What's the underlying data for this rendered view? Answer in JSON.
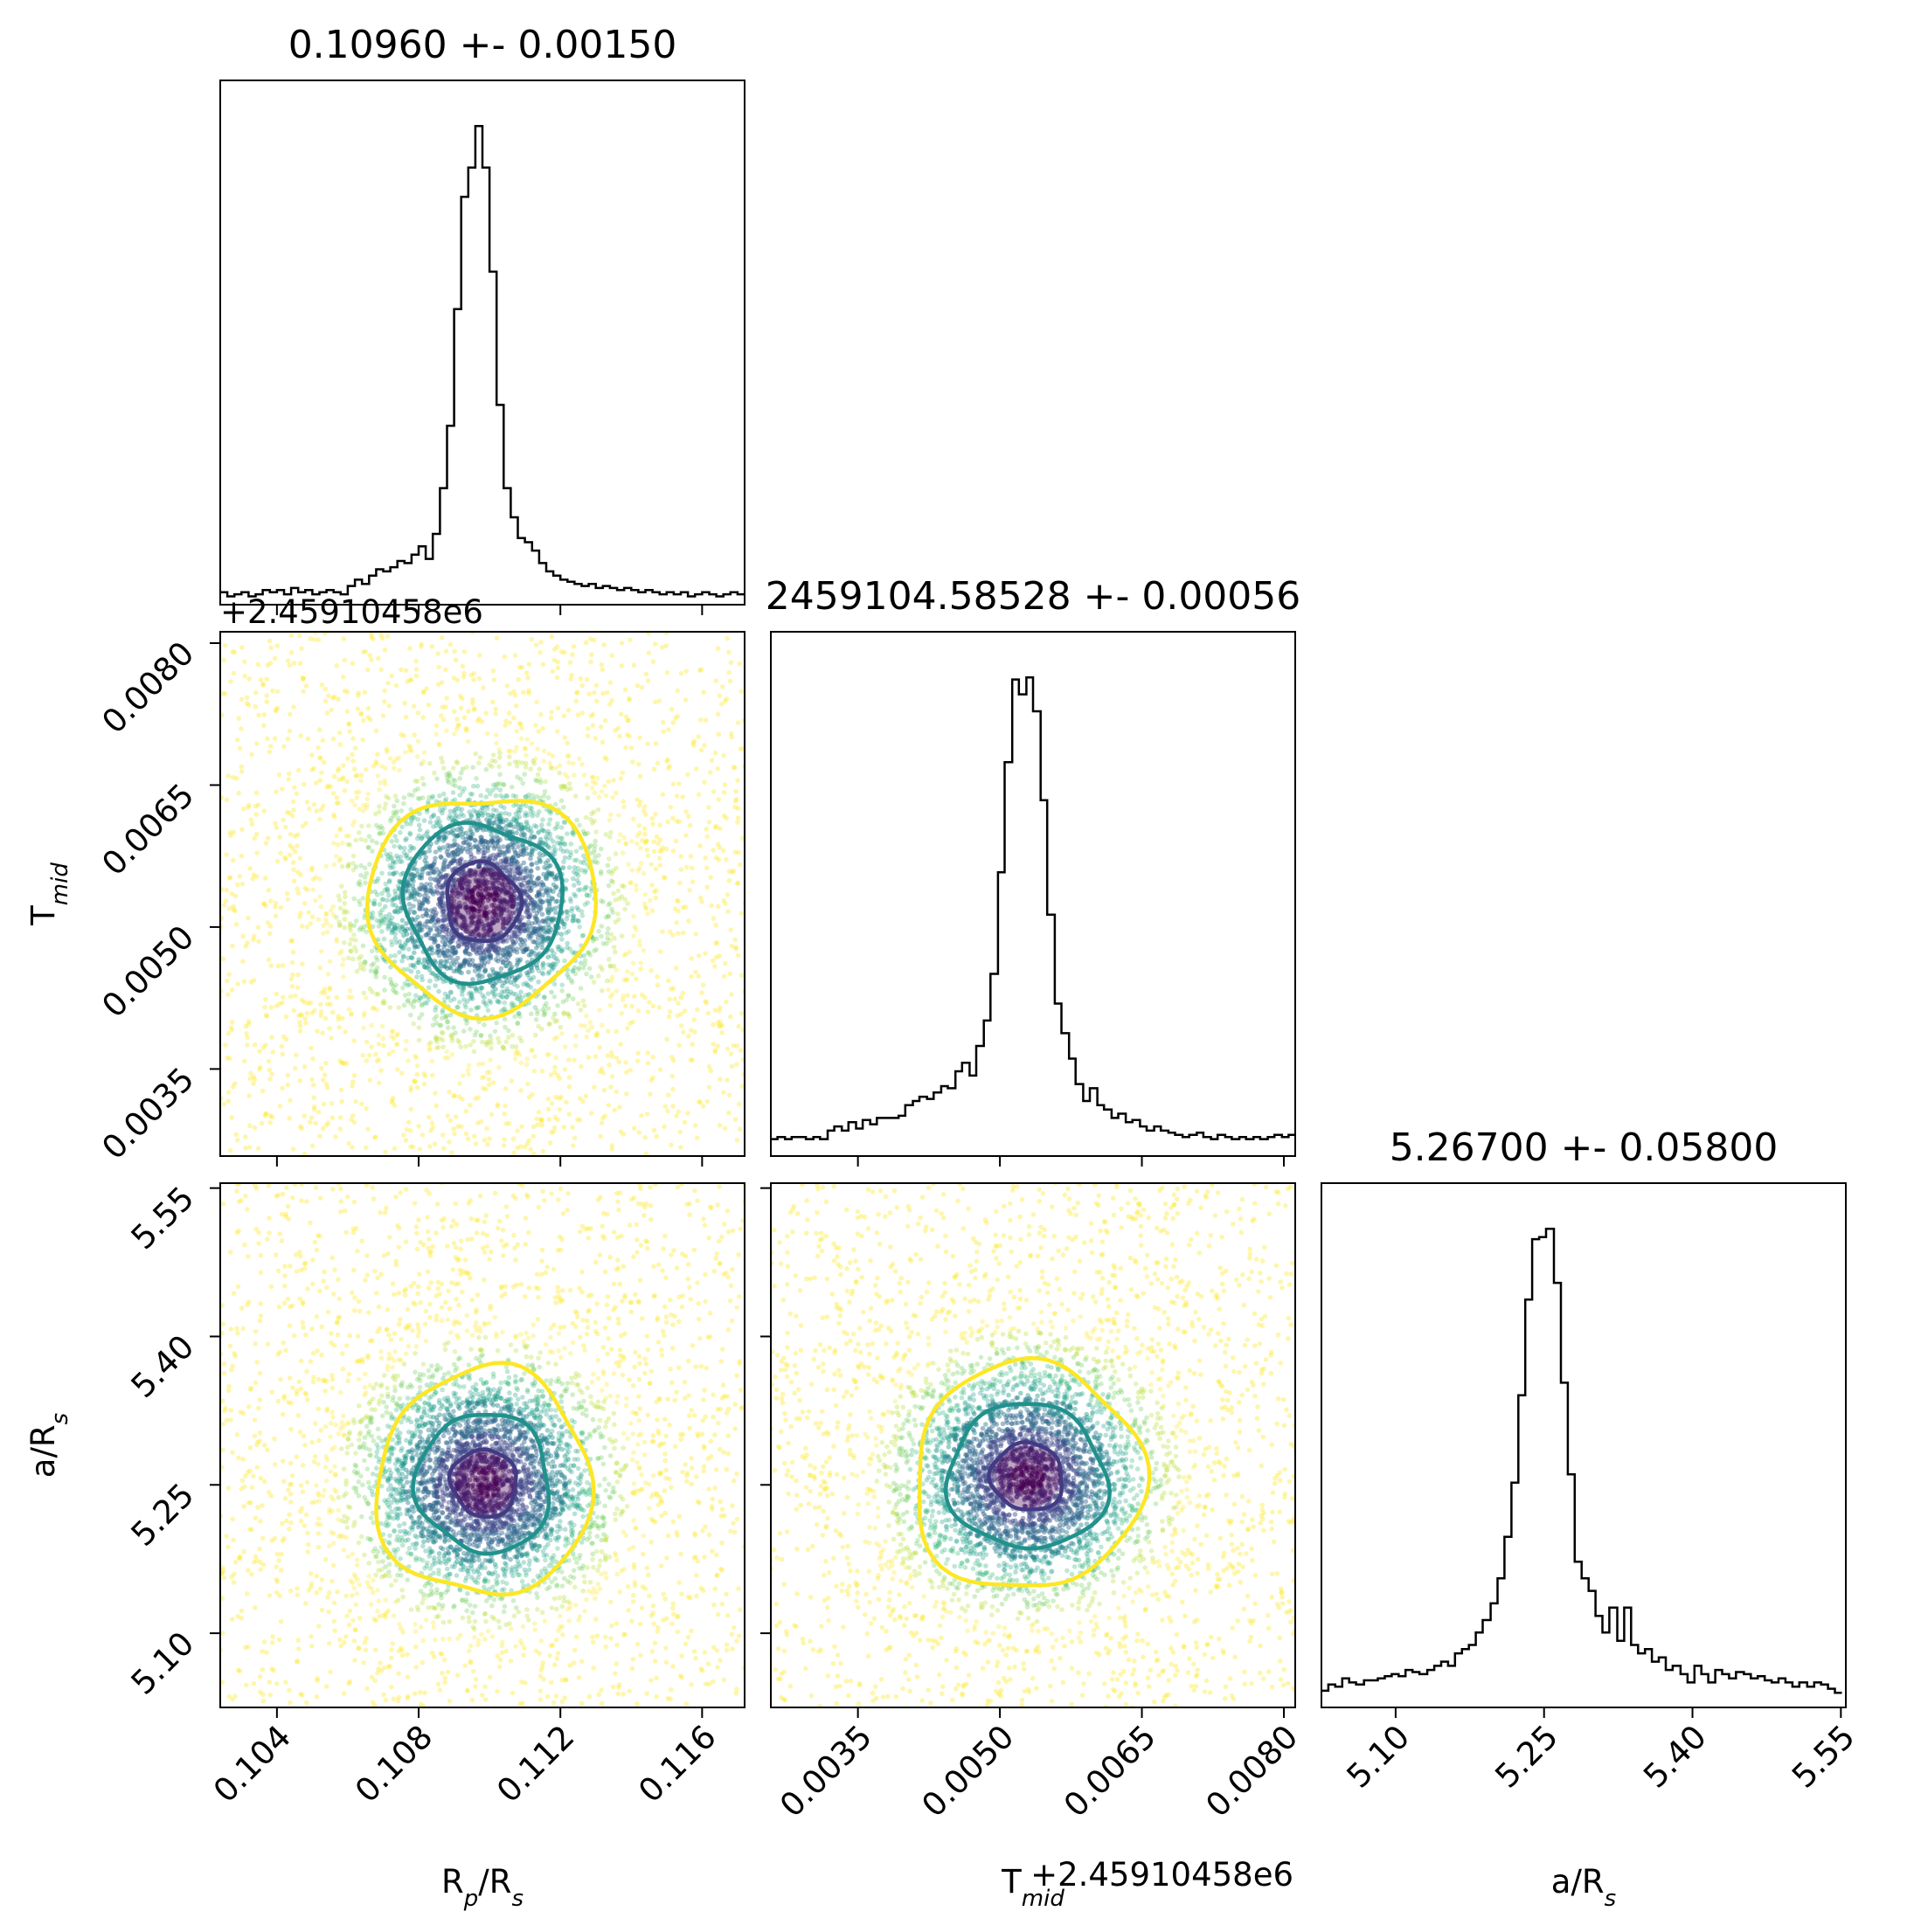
{
  "chart_data": {
    "type": "corner",
    "params": [
      "R_p/R_s",
      "T_mid",
      "a/R_s"
    ],
    "panels": [
      {
        "kind": "hist",
        "row": 0,
        "col": 0,
        "title": "0.10960 +- 0.00150",
        "xlim": [
          0.1024,
          0.1172
        ],
        "x_tick_labels_shown": false,
        "bins": [
          0.1024,
          0.1026,
          0.1028,
          0.103,
          0.1032,
          0.1034,
          0.1036,
          0.1038,
          0.104,
          0.1042,
          0.1044,
          0.1046,
          0.1048,
          0.105,
          0.1052,
          0.1054,
          0.1056,
          0.1058,
          0.106,
          0.1062,
          0.1064,
          0.1066,
          0.1068,
          0.107,
          0.1072,
          0.1074,
          0.1076,
          0.1078,
          0.108,
          0.1082,
          0.1084,
          0.1086,
          0.1088,
          0.109,
          0.1092,
          0.1094,
          0.1096,
          0.1098,
          0.11,
          0.1102,
          0.1104,
          0.1106,
          0.1108,
          0.111,
          0.1112,
          0.1114,
          0.1116,
          0.1118,
          0.112,
          0.1122,
          0.1124,
          0.1126,
          0.1128,
          0.113,
          0.1132,
          0.1134,
          0.1136,
          0.1138,
          0.114,
          0.1142,
          0.1144,
          0.1146,
          0.1148,
          0.115,
          0.1152,
          0.1154,
          0.1156,
          0.1158,
          0.116,
          0.1162,
          0.1164,
          0.1166,
          0.1168,
          0.117,
          0.1172
        ],
        "counts": [
          6,
          4,
          5,
          6,
          4,
          5,
          7,
          6,
          7,
          5,
          8,
          6,
          7,
          5,
          6,
          7,
          6,
          5,
          9,
          12,
          10,
          14,
          17,
          16,
          18,
          21,
          20,
          24,
          28,
          22,
          34,
          56,
          86,
          142,
          196,
          210,
          230,
          210,
          160,
          96,
          56,
          42,
          32,
          30,
          26,
          20,
          16,
          14,
          12,
          11,
          10,
          9,
          10,
          8,
          9,
          8,
          7,
          8,
          7,
          6,
          7,
          6,
          5,
          6,
          5,
          6,
          4,
          5,
          6,
          5,
          4,
          5,
          6,
          5
        ]
      },
      {
        "kind": "scatter",
        "row": 1,
        "col": 0,
        "xlim": [
          0.1024,
          0.1172
        ],
        "ylim": [
          0.00258,
          0.00812
        ],
        "center": [
          0.1098,
          0.00526
        ],
        "sigma": [
          0.0016,
          0.00062
        ],
        "contours": [
          {
            "level": 0.39,
            "rx": 0.00104,
            "ry": 0.00042,
            "color": "#443a83"
          },
          {
            "level": 0.86,
            "rx": 0.00218,
            "ry": 0.00085,
            "color": "#21918c"
          },
          {
            "level": 0.99,
            "rx": 0.00314,
            "ry": 0.00117,
            "color": "#fde725"
          }
        ],
        "yticks": [
          0.0035,
          0.005,
          0.0065,
          0.008
        ],
        "ytick_labels": [
          "0.0035",
          "0.0050",
          "0.0065",
          "0.0080"
        ],
        "y_offset_label": "+2.45910458e6",
        "ylabel": "T$_{mid}$"
      },
      {
        "kind": "hist",
        "row": 1,
        "col": 1,
        "title": "2459104.58528 +- 0.00056",
        "xlim": [
          0.00258,
          0.00812
        ],
        "x_tick_labels_shown": false,
        "bins": [
          0.00258,
          0.00265,
          0.00273,
          0.0028,
          0.00288,
          0.00295,
          0.00303,
          0.0031,
          0.00318,
          0.00325,
          0.00333,
          0.0034,
          0.00348,
          0.00355,
          0.00363,
          0.0037,
          0.00378,
          0.00385,
          0.00393,
          0.004,
          0.00408,
          0.00415,
          0.00423,
          0.0043,
          0.00438,
          0.00445,
          0.00453,
          0.0046,
          0.00468,
          0.00475,
          0.00483,
          0.0049,
          0.00498,
          0.00505,
          0.00513,
          0.0052,
          0.00528,
          0.00535,
          0.00543,
          0.0055,
          0.00558,
          0.00565,
          0.00573,
          0.0058,
          0.00588,
          0.00595,
          0.00603,
          0.0061,
          0.00618,
          0.00625,
          0.00633,
          0.0064,
          0.00648,
          0.00655,
          0.00663,
          0.0067,
          0.00678,
          0.00685,
          0.00693,
          0.007,
          0.00708,
          0.00715,
          0.00723,
          0.0073,
          0.00738,
          0.00745,
          0.00753,
          0.0076,
          0.00768,
          0.00775,
          0.00783,
          0.0079,
          0.00798,
          0.00805,
          0.00812
        ],
        "counts": [
          8,
          9,
          8,
          9,
          9,
          8,
          9,
          8,
          12,
          14,
          12,
          16,
          13,
          17,
          15,
          18,
          18,
          18,
          19,
          24,
          26,
          28,
          27,
          30,
          33,
          32,
          40,
          44,
          38,
          52,
          64,
          86,
          134,
          186,
          225,
          218,
          226,
          210,
          168,
          114,
          72,
          58,
          46,
          34,
          26,
          32,
          24,
          22,
          18,
          20,
          16,
          17,
          14,
          12,
          14,
          12,
          11,
          10,
          9,
          10,
          11,
          9,
          8,
          10,
          9,
          8,
          9,
          8,
          9,
          8,
          9,
          10,
          9,
          10
        ]
      },
      {
        "kind": "scatter",
        "row": 2,
        "col": 0,
        "xlim": [
          0.1024,
          0.1172
        ],
        "ylim": [
          5.025,
          5.555
        ],
        "center": [
          0.10985,
          5.252
        ],
        "sigma": [
          0.0016,
          0.057
        ],
        "contours": [
          {
            "level": 0.39,
            "rx": 0.00092,
            "ry": 0.034,
            "color": "#443a83"
          },
          {
            "level": 0.86,
            "rx": 0.00184,
            "ry": 0.072,
            "color": "#21918c"
          },
          {
            "level": 0.99,
            "rx": 0.00295,
            "ry": 0.118,
            "color": "#fde725"
          }
        ],
        "xticks": [
          0.104,
          0.108,
          0.112,
          0.116
        ],
        "xtick_labels": [
          "0.104",
          "0.108",
          "0.112",
          "0.116"
        ],
        "yticks": [
          5.1,
          5.25,
          5.4,
          5.55
        ],
        "ytick_labels": [
          "5.10",
          "5.25",
          "5.40",
          "5.55"
        ],
        "xlabel": "R$_{p}$/R$_{s}$",
        "ylabel": "a/R$_{s}$"
      },
      {
        "kind": "scatter",
        "row": 2,
        "col": 1,
        "xlim": [
          0.00258,
          0.00812
        ],
        "ylim": [
          5.025,
          5.555
        ],
        "center": [
          0.00529,
          5.258
        ],
        "sigma": [
          0.00062,
          0.057
        ],
        "contours": [
          {
            "level": 0.39,
            "rx": 0.00038,
            "ry": 0.034,
            "color": "#443a83"
          },
          {
            "level": 0.86,
            "rx": 0.00082,
            "ry": 0.075,
            "color": "#21918c"
          },
          {
            "level": 0.99,
            "rx": 0.00118,
            "ry": 0.118,
            "color": "#fde725"
          }
        ],
        "xticks": [
          0.0035,
          0.005,
          0.0065,
          0.008
        ],
        "xtick_labels": [
          "0.0035",
          "0.0050",
          "0.0065",
          "0.0080"
        ],
        "xlabel": "T$_{mid}$",
        "x_offset_label": "+2.45910458e6"
      },
      {
        "kind": "hist",
        "row": 2,
        "col": 2,
        "title": "5.26700 +- 0.05800",
        "xlim": [
          5.025,
          5.555
        ],
        "bins": [
          5.025,
          5.032,
          5.039,
          5.046,
          5.053,
          5.06,
          5.068,
          5.075,
          5.082,
          5.089,
          5.096,
          5.103,
          5.11,
          5.117,
          5.124,
          5.132,
          5.139,
          5.146,
          5.153,
          5.16,
          5.167,
          5.174,
          5.181,
          5.188,
          5.196,
          5.203,
          5.21,
          5.217,
          5.224,
          5.231,
          5.238,
          5.245,
          5.252,
          5.26,
          5.267,
          5.274,
          5.281,
          5.288,
          5.295,
          5.302,
          5.309,
          5.316,
          5.324,
          5.331,
          5.338,
          5.345,
          5.352,
          5.359,
          5.366,
          5.373,
          5.38,
          5.388,
          5.395,
          5.402,
          5.409,
          5.416,
          5.423,
          5.43,
          5.437,
          5.444,
          5.452,
          5.459,
          5.466,
          5.473,
          5.48,
          5.487,
          5.494,
          5.501,
          5.508,
          5.516,
          5.523,
          5.53,
          5.537,
          5.544,
          5.551
        ],
        "counts": [
          8,
          11,
          10,
          14,
          12,
          11,
          13,
          13,
          14,
          15,
          16,
          15,
          18,
          17,
          16,
          18,
          20,
          22,
          20,
          26,
          28,
          30,
          36,
          42,
          50,
          62,
          82,
          108,
          150,
          196,
          225,
          226,
          230,
          204,
          156,
          112,
          70,
          62,
          56,
          44,
          36,
          48,
          32,
          48,
          30,
          26,
          28,
          22,
          24,
          18,
          20,
          16,
          12,
          20,
          16,
          12,
          18,
          16,
          14,
          17,
          16,
          14,
          15,
          13,
          12,
          14,
          12,
          10,
          12,
          10,
          12,
          11,
          9,
          7
        ],
        "xticks": [
          5.1,
          5.25,
          5.4,
          5.55
        ],
        "xtick_labels": [
          "5.10",
          "5.25",
          "5.40",
          "5.55"
        ],
        "xlabel": "a/R$_{s}$"
      }
    ],
    "scatter_colors": [
      "#440154",
      "#482878",
      "#3e4989",
      "#31688e",
      "#26828e",
      "#1f9e89",
      "#35b779",
      "#6ece58",
      "#b5de2b",
      "#fde725"
    ]
  }
}
